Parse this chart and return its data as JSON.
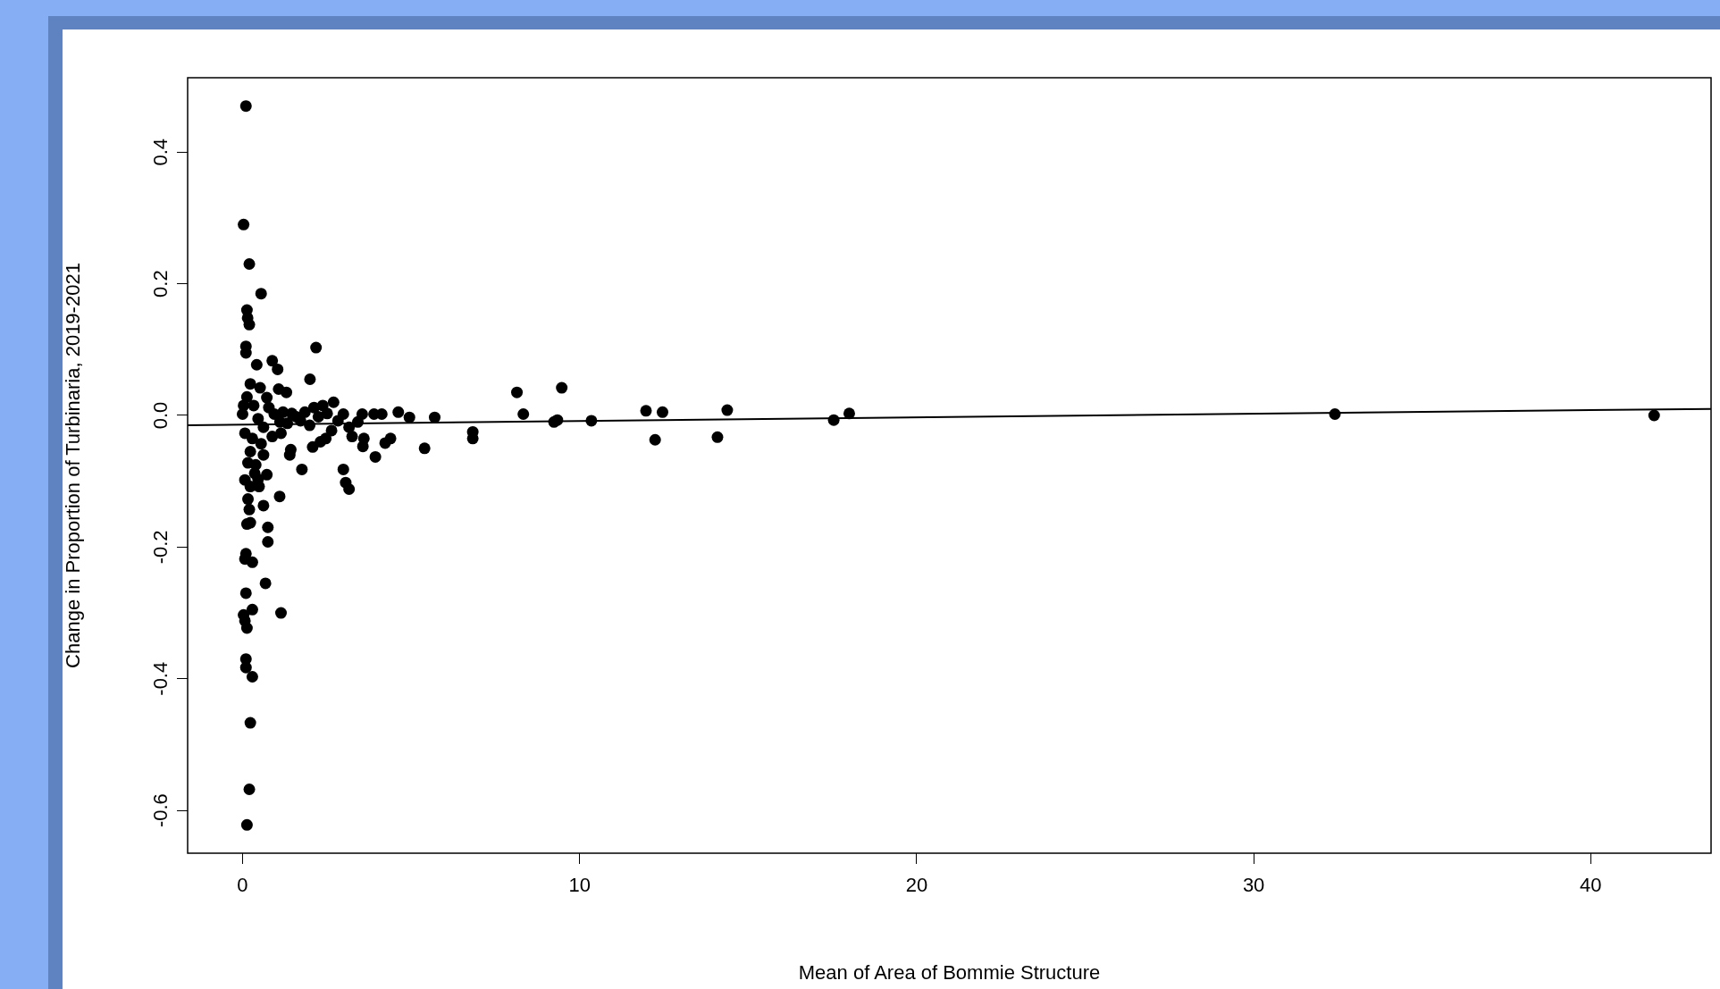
{
  "chart_data": {
    "type": "scatter",
    "xlabel": "Mean of Area of Bommie Structure",
    "ylabel": "Change in Proportion of Turbinaria, 2019-2021",
    "xlim": [
      -1.63,
      43.57
    ],
    "ylim": [
      -0.665,
      0.513
    ],
    "xticks": [
      0,
      10,
      20,
      30,
      40
    ],
    "yticks": [
      -0.6,
      -0.4,
      -0.2,
      {
        "value": 0,
        "label": "0.0"
      },
      0.2,
      0.4
    ],
    "grid": false,
    "legend": false,
    "series": [
      {
        "type": "scatter",
        "marker": "circle",
        "color": "#000000",
        "x": [
          0.1,
          0.03,
          0.2,
          0.55,
          0.13,
          0.15,
          0.2,
          0.1,
          0.1,
          2.18,
          0.88,
          0.42,
          1.04,
          2.0,
          0.23,
          0.52,
          1.07,
          1.3,
          0.72,
          8.14,
          9.47,
          8.33,
          9.24,
          9.34,
          10.35,
          11.97,
          12.46,
          14.38,
          12.24,
          14.09,
          17.54,
          18.0,
          32.41,
          41.88,
          6.83,
          6.83,
          5.4,
          5.7,
          4.95,
          4.62,
          4.13,
          3.9,
          4.39,
          4.23,
          3.94,
          3.6,
          3.57,
          3.25,
          2.99,
          3.06,
          3.16,
          2.99,
          2.7,
          2.64,
          2.47,
          2.31,
          2.08,
          1.76,
          1.43,
          1.4,
          1.1,
          1.14,
          0.62,
          0.75,
          0.75,
          0.68,
          0.72,
          0.07,
          0.16,
          0.2,
          0.13,
          0.23,
          0.1,
          0.07,
          0.29,
          0.1,
          0.03,
          0.07,
          0.13,
          0.29,
          0.1,
          0.1,
          0.29,
          0.23,
          0.2,
          0.13,
          0.46,
          0.39,
          0.23,
          0.16,
          0.62,
          0.55,
          0.29,
          0.07,
          0,
          0.03,
          0.13,
          0.33,
          0.46,
          0.62,
          0.78,
          0.94,
          1.11,
          1.2,
          1.33,
          1.46,
          1.59,
          1.72,
          1.85,
          1.99,
          2.12,
          2.25,
          2.38,
          2.51,
          2.83,
          3.16,
          3.42,
          3.55,
          0.88,
          1.14,
          0.49,
          0.36,
          0.23
        ],
        "values": [
          0.47,
          0.29,
          0.23,
          0.185,
          0.16,
          0.148,
          0.138,
          0.105,
          0.095,
          0.103,
          0.083,
          0.077,
          0.07,
          0.055,
          0.048,
          0.042,
          0.04,
          0.035,
          0.027,
          0.035,
          0.042,
          0.002,
          -0.01,
          -0.007,
          -0.008,
          0.007,
          0.005,
          0.008,
          -0.037,
          -0.033,
          -0.007,
          0.003,
          0.002,
          0,
          -0.025,
          -0.035,
          -0.05,
          -0.003,
          -0.003,
          0.005,
          0.002,
          0.002,
          -0.035,
          -0.042,
          -0.063,
          -0.035,
          -0.047,
          -0.032,
          -0.082,
          -0.102,
          -0.112,
          0.002,
          0.02,
          -0.023,
          -0.035,
          -0.04,
          -0.048,
          -0.082,
          -0.052,
          -0.06,
          -0.123,
          -0.3,
          -0.137,
          -0.17,
          -0.192,
          -0.255,
          -0.09,
          -0.098,
          -0.127,
          -0.143,
          -0.165,
          -0.163,
          -0.21,
          -0.218,
          -0.223,
          -0.27,
          -0.303,
          -0.312,
          -0.323,
          -0.295,
          -0.37,
          -0.383,
          -0.397,
          -0.467,
          -0.568,
          -0.622,
          -0.097,
          -0.075,
          -0.055,
          -0.072,
          -0.06,
          -0.043,
          -0.035,
          -0.027,
          0.002,
          0.015,
          0.028,
          0.015,
          -0.005,
          -0.018,
          0.012,
          0.002,
          -0.01,
          0.005,
          -0.012,
          0.003,
          -0.002,
          -0.008,
          0.005,
          -0.015,
          0.012,
          -0.002,
          0.015,
          0.003,
          -0.008,
          -0.018,
          -0.01,
          0.002,
          -0.032,
          -0.027,
          -0.108,
          -0.088,
          -0.108
        ]
      },
      {
        "type": "line",
        "marker": "none",
        "color": "#000000",
        "x": [
          -1.63,
          43.57
        ],
        "values": [
          -0.015,
          0.01
        ]
      }
    ]
  }
}
